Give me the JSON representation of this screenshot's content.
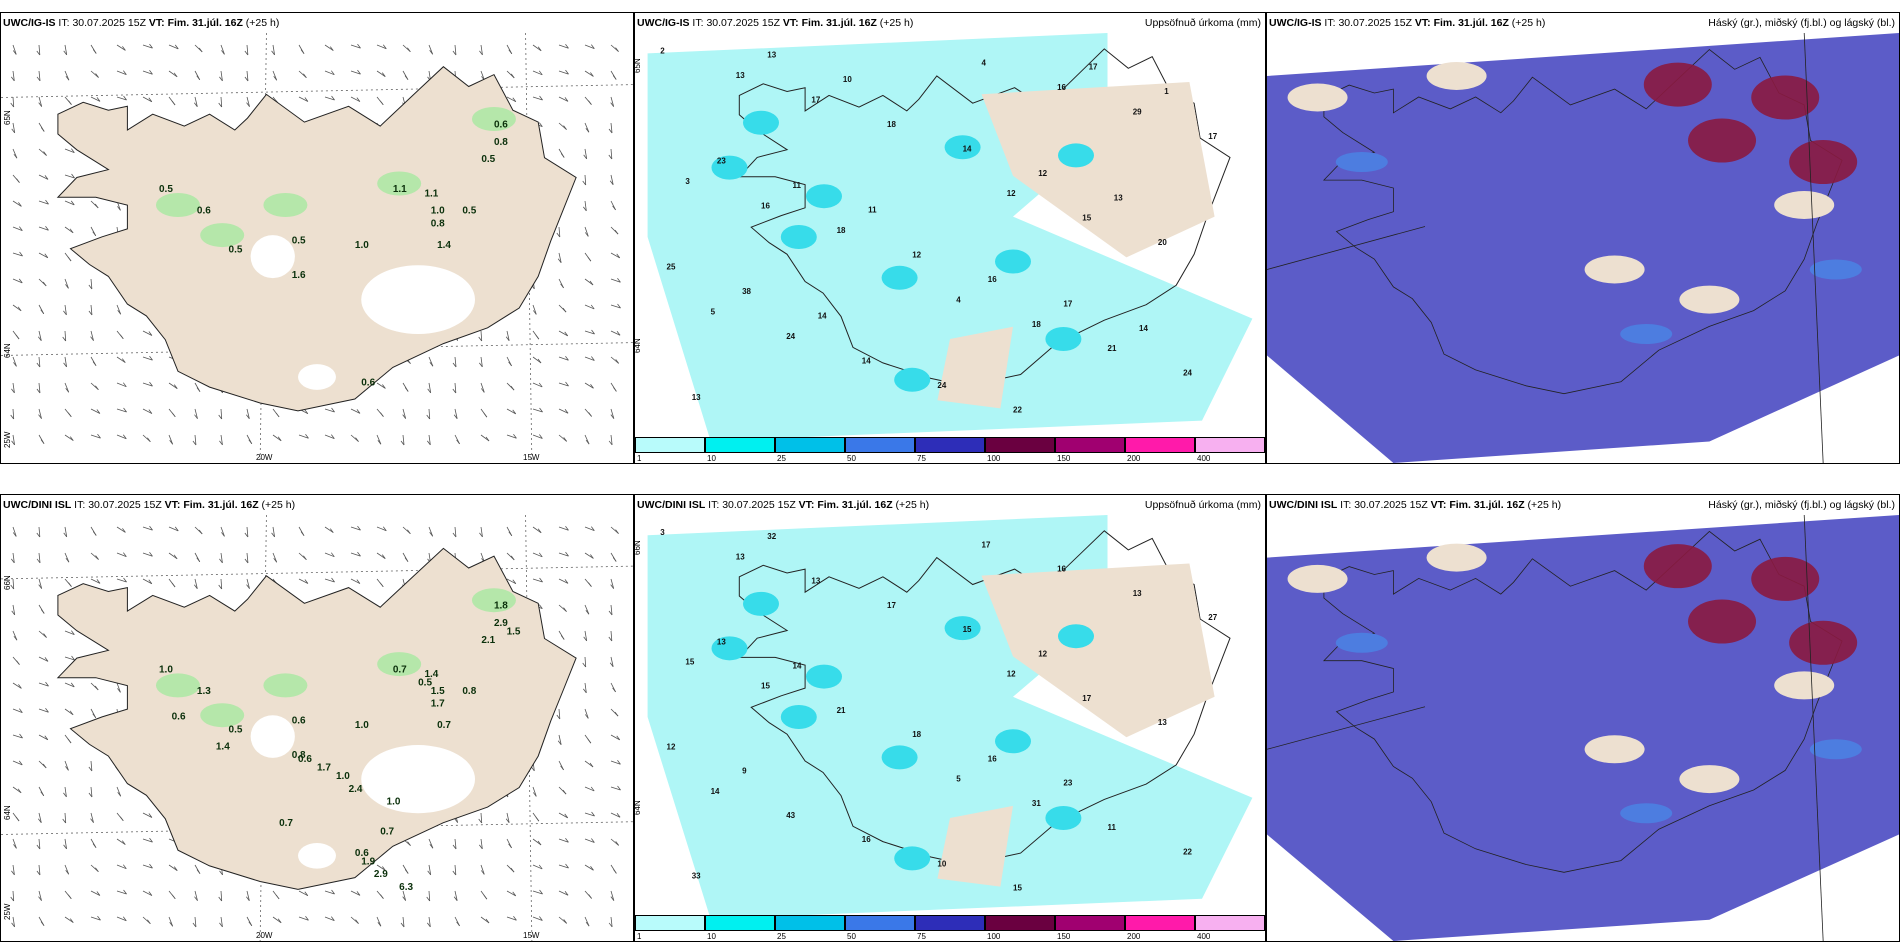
{
  "rows": [
    {
      "model": "UWC/IG-IS",
      "it_label": "IT:",
      "it_value": "30.07.2025 15Z",
      "vt_label": "VT:",
      "vt_value": "Fim. 31.júl. 16Z",
      "lead": "(+25 h)",
      "lat_top": "65N",
      "lat_mid": "64N",
      "lon_left": "25W",
      "lon_a": "20W",
      "lon_b": "15W",
      "precip_labels": [
        {
          "t": "0.6"
        },
        {
          "t": "0.8"
        },
        {
          "t": "0.5"
        },
        {
          "t": "0.5"
        },
        {
          "t": "0.6"
        },
        {
          "t": "1.1"
        },
        {
          "t": "1.1"
        },
        {
          "t": "1.0"
        },
        {
          "t": "0.8"
        },
        {
          "t": "0.5"
        },
        {
          "t": "1.4"
        },
        {
          "t": "0.5"
        },
        {
          "t": "0.5"
        },
        {
          "t": "1.0"
        },
        {
          "t": "1.6"
        },
        {
          "t": "0.6"
        }
      ],
      "accum_labels": [
        "2",
        "4",
        "3",
        "4",
        "5",
        "12",
        "13",
        "18",
        "16",
        "16",
        "24",
        "15",
        "17",
        "21",
        "18",
        "29",
        "14",
        "20",
        "18",
        "24",
        "12",
        "17",
        "24",
        "25",
        "14",
        "13",
        "16",
        "23",
        "22",
        "38",
        "12",
        "13",
        "17",
        "11",
        "17",
        "14",
        "13",
        "10",
        "14",
        "11",
        "1"
      ]
    },
    {
      "model": "UWC/DINI ISL",
      "it_label": "IT:",
      "it_value": "30.07.2025 15Z",
      "vt_label": "VT:",
      "vt_value": "Fim. 31.júl. 16Z",
      "lead": "(+25 h)",
      "lat_top": "66N",
      "lat_mid": "64N",
      "lon_left": "25W",
      "lon_a": "20W",
      "lon_b": "15W",
      "precip_labels": [
        {
          "t": "1.8"
        },
        {
          "t": "2.9"
        },
        {
          "t": "2.1"
        },
        {
          "t": "1.0"
        },
        {
          "t": "1.3"
        },
        {
          "t": "0.7"
        },
        {
          "t": "1.4"
        },
        {
          "t": "1.5"
        },
        {
          "t": "1.7"
        },
        {
          "t": "0.8"
        },
        {
          "t": "0.7"
        },
        {
          "t": "0.5"
        },
        {
          "t": "0.6"
        },
        {
          "t": "1.0"
        },
        {
          "t": "0.8"
        },
        {
          "t": "1.9"
        },
        {
          "t": "1.5"
        },
        {
          "t": "0.6"
        },
        {
          "t": "1.4"
        },
        {
          "t": "0.6"
        },
        {
          "t": "1.7"
        },
        {
          "t": "1.0"
        },
        {
          "t": "2.4"
        },
        {
          "t": "1.0"
        },
        {
          "t": "0.5"
        },
        {
          "t": "0.7"
        },
        {
          "t": "0.7"
        },
        {
          "t": "0.6"
        },
        {
          "t": "2.9"
        },
        {
          "t": "6.3"
        }
      ],
      "accum_labels": [
        "3",
        "5",
        "15",
        "17",
        "14",
        "12",
        "13",
        "31",
        "15",
        "16",
        "43",
        "17",
        "13",
        "11",
        "21",
        "13",
        "16",
        "13",
        "17",
        "22",
        "18",
        "27",
        "10",
        "12",
        "15",
        "33",
        "16",
        "13",
        "15",
        "9",
        "12",
        "32",
        "23",
        "14"
      ]
    }
  ],
  "accum_title": "Uppsöfnuð úrkoma (mm)",
  "cloud_title": "Háský (gr.), miðský (fj.bl.) og lágský (bl.)",
  "colorbar": {
    "ticks": [
      "1",
      "10",
      "25",
      "50",
      "75",
      "100",
      "150",
      "200",
      "400"
    ],
    "colors": [
      "#b8fbfb",
      "#00f0f0",
      "#00c0e8",
      "#3a78e8",
      "#2d2db8",
      "#6a0040",
      "#a00070",
      "#ff1aaa",
      "#f7b0f0"
    ]
  },
  "colors": {
    "land": "#ede0d0",
    "sea": "#ffffff",
    "accum_field": "#aff6f6",
    "accum_strong": "#37dcea",
    "low_cloud": "#5c5cc8",
    "mid_cloud": "#4d7de0",
    "high_cloud": "#8a1a40",
    "light_precip": "#a6e8a0"
  }
}
